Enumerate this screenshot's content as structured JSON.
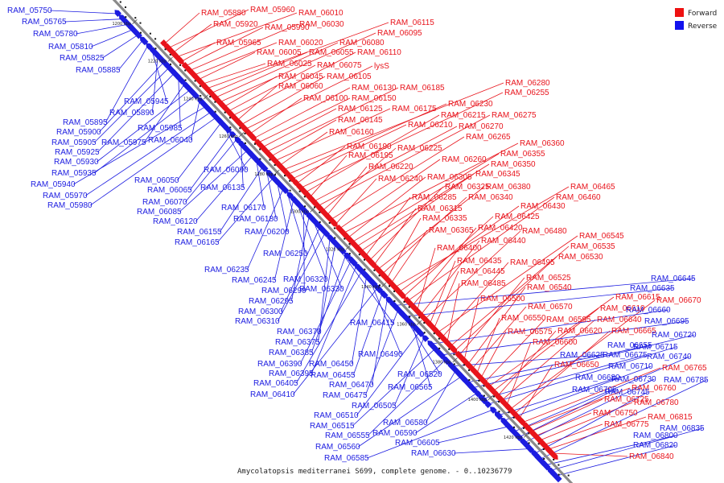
{
  "title": "Amycolatopsis mediterranei S699, complete genome. - 0..10236779",
  "legend": [
    {
      "label": "Forward",
      "color": "#ee1111"
    },
    {
      "label": "Reverse",
      "color": "#1111ee"
    }
  ],
  "colors": {
    "forward": "#e8141c",
    "reverse": "#1c1ce0",
    "backbone": "#8a8a8a"
  },
  "ticks": [
    "1200 kbp",
    "1220 kbp",
    "1240 kbp",
    "1260 kbp",
    "1280 kbp",
    "1300 kbp",
    "1320 kbp",
    "1340 kbp",
    "1360 kbp",
    "1380 kbp",
    "1400 kbp",
    "1420 kbp"
  ],
  "forward_genes": [
    "RAM_05880",
    "RAM_05960",
    "RAM_06010",
    "RAM_05920",
    "RAM_05990",
    "RAM_06030",
    "RAM_06115",
    "RAM_06095",
    "RAM_05965",
    "RAM_06020",
    "RAM_06080",
    "RAM_06005",
    "RAM_06055",
    "RAM_06110",
    "RAM_06025",
    "RAM_06075",
    "lysS",
    "RAM_06045",
    "RAM_06105",
    "RAM_06060",
    "RAM_06130",
    "RAM_06185",
    "RAM_06280",
    "RAM_06100",
    "RAM_06150",
    "RAM_06255",
    "RAM_06125",
    "RAM_06175",
    "RAM_06230",
    "RAM_06145",
    "RAM_06215",
    "RAM_06275",
    "RAM_06160",
    "RAM_06210",
    "RAM_06270",
    "RAM_06265",
    "RAM_06190",
    "RAM_06225",
    "RAM_06360",
    "RAM_06195",
    "RAM_06260",
    "RAM_06355",
    "RAM_06220",
    "RAM_06350",
    "RAM_06240",
    "RAM_06305",
    "RAM_06345",
    "RAM_06325",
    "RAM_06380",
    "RAM_06285",
    "RAM_06340",
    "RAM_06465",
    "RAM_06460",
    "RAM_06315",
    "RAM_06430",
    "RAM_06335",
    "RAM_06425",
    "RAM_06365",
    "RAM_06420",
    "RAM_06480",
    "RAM_06440",
    "RAM_06545",
    "RAM_06400",
    "RAM_06535",
    "RAM_06530",
    "RAM_06435",
    "RAM_06495",
    "RAM_06445",
    "RAM_06525",
    "RAM_06485",
    "RAM_06540",
    "RAM_06500",
    "RAM_06615",
    "RAM_06670",
    "RAM_06570",
    "RAM_06610",
    "RAM_06550",
    "RAM_06595",
    "RAM_06640",
    "RAM_06575",
    "RAM_06620",
    "RAM_06665",
    "RAM_06600",
    "RAM_06650",
    "RAM_06765",
    "RAM_06760",
    "RAM_06725",
    "RAM_06780",
    "RAM_06750",
    "RAM_06815",
    "RAM_06775",
    "RAM_06840"
  ],
  "reverse_genes": [
    "RAM_05750",
    "RAM_05765",
    "RAM_05780",
    "RAM_05810",
    "RAM_05825",
    "RAM_05885",
    "RAM_05945",
    "RAM_05890",
    "RAM_05895",
    "RAM_05900",
    "RAM_05985",
    "RAM_05905",
    "RAM_05975",
    "RAM_06040",
    "RAM_05925",
    "RAM_05930",
    "RAM_05935",
    "RAM_06090",
    "RAM_05940",
    "RAM_06050",
    "RAM_06065",
    "RAM_05970",
    "RAM_06135",
    "RAM_05980",
    "RAM_06070",
    "RAM_06085",
    "RAM_06170",
    "RAM_06120",
    "RAM_06180",
    "RAM_06155",
    "RAM_06200",
    "RAM_06165",
    "RAM_06250",
    "RAM_06235",
    "RAM_06245",
    "RAM_06320",
    "RAM_06290",
    "RAM_06330",
    "RAM_06295",
    "RAM_06300",
    "RAM_06310",
    "RAM_06415",
    "RAM_06370",
    "RAM_06375",
    "RAM_06385",
    "RAM_06490",
    "RAM_06390",
    "RAM_06450",
    "RAM_06395",
    "RAM_06455",
    "RAM_06520",
    "RAM_06405",
    "RAM_06470",
    "RAM_06410",
    "RAM_06475",
    "RAM_06565",
    "RAM_06505",
    "RAM_06510",
    "RAM_06580",
    "RAM_06515",
    "RAM_06590",
    "RAM_06555",
    "RAM_06560",
    "RAM_06605",
    "RAM_06585",
    "RAM_06630",
    "RAM_06645",
    "RAM_06635",
    "RAM_06660",
    "RAM_06695",
    "RAM_06720",
    "RAM_06655",
    "RAM_06715",
    "RAM_06625",
    "RAM_06675",
    "RAM_06740",
    "RAM_06710",
    "RAM_06680",
    "RAM_06730",
    "RAM_06785",
    "RAM_06705",
    "RAM_06745",
    "RAM_06800",
    "RAM_06820",
    "RAM_06835"
  ]
}
